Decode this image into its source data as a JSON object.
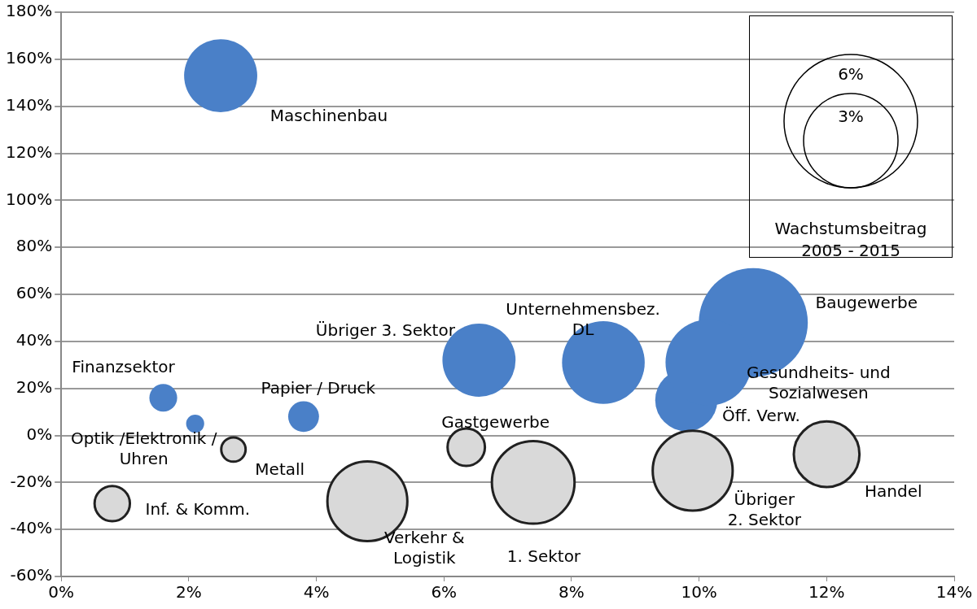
{
  "chart_data": {
    "type": "bubble",
    "series": [
      {
        "name": "Maschinenbau",
        "color": "#4a80c8",
        "x": [
          2.5
        ],
        "values": [
          153
        ],
        "sizes": [
          1.8
        ]
      },
      {
        "name": "Finanzsektor",
        "color": "#4a80c8",
        "x": [
          1.6
        ],
        "values": [
          16
        ],
        "sizes": [
          0.26
        ]
      },
      {
        "name": "Optik /Elektronik / Uhren",
        "color": "#4a80c8",
        "x": [
          2.1
        ],
        "values": [
          5
        ],
        "sizes": [
          0.11
        ]
      },
      {
        "name": "Metall",
        "color": "#d9d9d9",
        "x": [
          2.7
        ],
        "values": [
          -6
        ],
        "sizes": [
          0.2
        ]
      },
      {
        "name": "Papier / Druck",
        "color": "#4a80c8",
        "x": [
          3.8
        ],
        "values": [
          8
        ],
        "sizes": [
          0.32
        ]
      },
      {
        "name": "Inf. & Komm.",
        "color": "#d9d9d9",
        "x": [
          0.8
        ],
        "values": [
          -29
        ],
        "sizes": [
          0.42
        ]
      },
      {
        "name": "Verkehr & Logistik",
        "color": "#d9d9d9",
        "x": [
          4.8
        ],
        "values": [
          -28
        ],
        "sizes": [
          2.15
        ]
      },
      {
        "name": "Übriger 3. Sektor",
        "color": "#4a80c8",
        "x": [
          6.55
        ],
        "values": [
          32
        ],
        "sizes": [
          1.8
        ]
      },
      {
        "name": "Gastgewerbe",
        "color": "#d9d9d9",
        "x": [
          6.35
        ],
        "values": [
          -5
        ],
        "sizes": [
          0.47
        ]
      },
      {
        "name": "Unternehmensbez. DL",
        "color": "#4a80c8",
        "x": [
          8.5
        ],
        "values": [
          31
        ],
        "sizes": [
          2.3
        ]
      },
      {
        "name": "1. Sektor",
        "color": "#d9d9d9",
        "x": [
          7.4
        ],
        "values": [
          -20
        ],
        "sizes": [
          2.3
        ]
      },
      {
        "name": "Öff. Verw.",
        "color": "#4a80c8",
        "x": [
          9.8
        ],
        "values": [
          15
        ],
        "sizes": [
          1.3
        ]
      },
      {
        "name": "Baugewerbe",
        "color": "#4a80c8",
        "x": [
          10.85
        ],
        "values": [
          48
        ],
        "sizes": [
          4.0
        ]
      },
      {
        "name": "Gesundheits- und Sozialwesen",
        "color": "#4a80c8",
        "x": [
          10.15
        ],
        "values": [
          31
        ],
        "sizes": [
          2.5
        ]
      },
      {
        "name": "Übriger 2. Sektor",
        "color": "#d9d9d9",
        "x": [
          9.9
        ],
        "values": [
          -15
        ],
        "sizes": [
          2.15
        ]
      },
      {
        "name": "Handel",
        "color": "#d9d9d9",
        "x": [
          12.0
        ],
        "values": [
          -8
        ],
        "sizes": [
          1.45
        ]
      }
    ],
    "size_legend": [
      {
        "value": 3,
        "label": "3%"
      },
      {
        "value": 6,
        "label": "6%"
      }
    ],
    "legend_title": "Wachstumsbeitrag 2005 - 2015",
    "grid": "y",
    "xlim": [
      0,
      14
    ],
    "xticks": [
      {
        "value": 0,
        "label": "0%"
      },
      {
        "value": 2,
        "label": "2%"
      },
      {
        "value": 4,
        "label": "4%"
      },
      {
        "value": 6,
        "label": "6%"
      },
      {
        "value": 8,
        "label": "8%"
      },
      {
        "value": 10,
        "label": "10%"
      },
      {
        "value": 12,
        "label": "12%"
      },
      {
        "value": 14,
        "label": "14%"
      }
    ],
    "ylim": [
      -60,
      180
    ],
    "yticks": [
      {
        "value": -60,
        "label": "-60%"
      },
      {
        "value": -40,
        "label": "-40%"
      },
      {
        "value": -20,
        "label": "-20%"
      },
      {
        "value": 0,
        "label": "0%"
      },
      {
        "value": 20,
        "label": "20%"
      },
      {
        "value": 40,
        "label": "40%"
      },
      {
        "value": 60,
        "label": "60%"
      },
      {
        "value": 80,
        "label": "80%"
      },
      {
        "value": 100,
        "label": "100%"
      },
      {
        "value": 120,
        "label": "120%"
      },
      {
        "value": 140,
        "label": "140%"
      },
      {
        "value": 160,
        "label": "160%"
      },
      {
        "value": 180,
        "label": "180%"
      }
    ]
  }
}
